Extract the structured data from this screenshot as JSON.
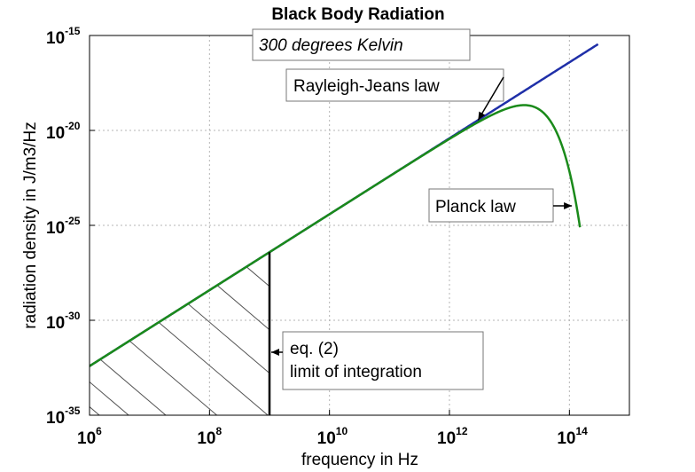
{
  "chart_data": {
    "type": "line",
    "title": "Black Body Radiation",
    "subtitle": "300 degrees Kelvin",
    "xlabel": "frequency in Hz",
    "ylabel": "radiation density in J/m3/Hz",
    "x_scale": "log",
    "y_scale": "log",
    "xlim": [
      1000000,
      1000000000000000.0
    ],
    "ylim": [
      1e-35,
      1e-15
    ],
    "grid": true,
    "x_ticks": [
      {
        "base": "10",
        "exp": "6",
        "value": 1000000
      },
      {
        "base": "10",
        "exp": "8",
        "value": 100000000
      },
      {
        "base": "10",
        "exp": "10",
        "value": 10000000000
      },
      {
        "base": "10",
        "exp": "12",
        "value": 1000000000000
      },
      {
        "base": "10",
        "exp": "14",
        "value": 100000000000000
      }
    ],
    "y_ticks": [
      {
        "base": "10",
        "exp": "-15",
        "value": 1e-15
      },
      {
        "base": "10",
        "exp": "-20",
        "value": 1e-20
      },
      {
        "base": "10",
        "exp": "-25",
        "value": 1e-25
      },
      {
        "base": "10",
        "exp": "-30",
        "value": 1e-30
      },
      {
        "base": "10",
        "exp": "-35",
        "value": 1e-35
      }
    ],
    "temperature_K": 300,
    "integration_limit_Hz": 1000000000,
    "series": [
      {
        "name": "Rayleigh-Jeans law",
        "color": "#1f2fa8",
        "law": "rayleigh-jeans",
        "x_range": [
          1000000,
          300000000000000
        ]
      },
      {
        "name": "Planck law",
        "color": "#1a8a1a",
        "law": "planck",
        "x_range": [
          1000000,
          150000000000000
        ]
      }
    ],
    "annotations": [
      {
        "id": "rj",
        "text": "Rayleigh-Jeans law",
        "target_x": 3000000000000
      },
      {
        "id": "planck",
        "text": "Planck law",
        "target_x": 110000000000000
      },
      {
        "id": "limit",
        "lines": [
          "eq. (2)",
          "limit of integration"
        ],
        "target_x": 1000000000
      }
    ]
  }
}
